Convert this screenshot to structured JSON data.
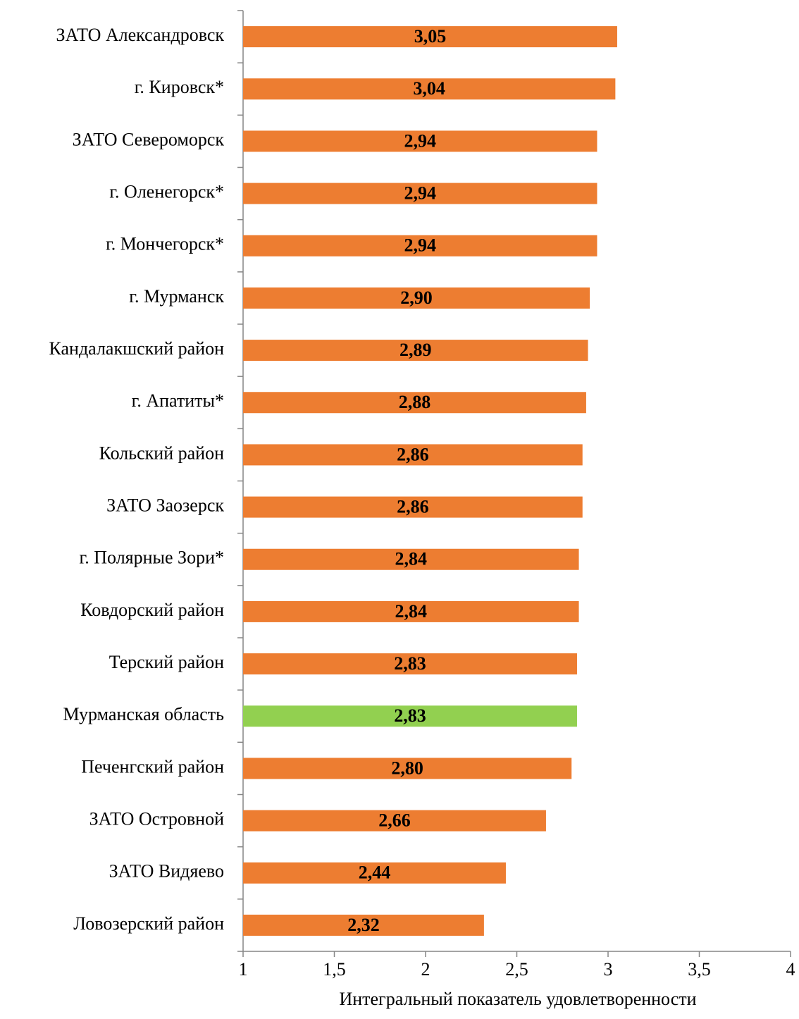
{
  "chart_data": {
    "type": "bar",
    "orientation": "horizontal",
    "categories": [
      "ЗАТО Александровск",
      "г. Кировск*",
      "ЗАТО Североморск",
      "г. Оленегорск*",
      "г. Мончегорск*",
      "г. Мурманск",
      "Кандалакшский район",
      "г. Апатиты*",
      "Кольский район",
      "ЗАТО Заозерск",
      "г. Полярные Зори*",
      "Ковдорский район",
      "Терский район",
      "Мурманская область",
      "Печенгский район",
      "ЗАТО Островной",
      "ЗАТО Видяево",
      "Ловозерский район"
    ],
    "values": [
      3.05,
      3.04,
      2.94,
      2.94,
      2.94,
      2.9,
      2.89,
      2.88,
      2.86,
      2.86,
      2.84,
      2.84,
      2.83,
      2.83,
      2.8,
      2.66,
      2.44,
      2.32
    ],
    "value_labels": [
      "3,05",
      "3,04",
      "2,94",
      "2,94",
      "2,94",
      "2,90",
      "2,89",
      "2,88",
      "2,86",
      "2,86",
      "2,84",
      "2,84",
      "2,83",
      "2,83",
      "2,80",
      "2,66",
      "2,44",
      "2,32"
    ],
    "colors": [
      "#ed7d31",
      "#ed7d31",
      "#ed7d31",
      "#ed7d31",
      "#ed7d31",
      "#ed7d31",
      "#ed7d31",
      "#ed7d31",
      "#ed7d31",
      "#ed7d31",
      "#ed7d31",
      "#ed7d31",
      "#ed7d31",
      "#92d050",
      "#ed7d31",
      "#ed7d31",
      "#ed7d31",
      "#ed7d31"
    ],
    "xlabel": "Интегральный показатель удовлетворенности",
    "xlim": [
      1,
      4
    ],
    "xticks": [
      1,
      {
        "value": 1.5,
        "label": "1,5"
      },
      2,
      {
        "value": 2.5,
        "label": "2,5"
      },
      3,
      {
        "value": 3.5,
        "label": "3,5"
      },
      4
    ],
    "grid": false
  }
}
